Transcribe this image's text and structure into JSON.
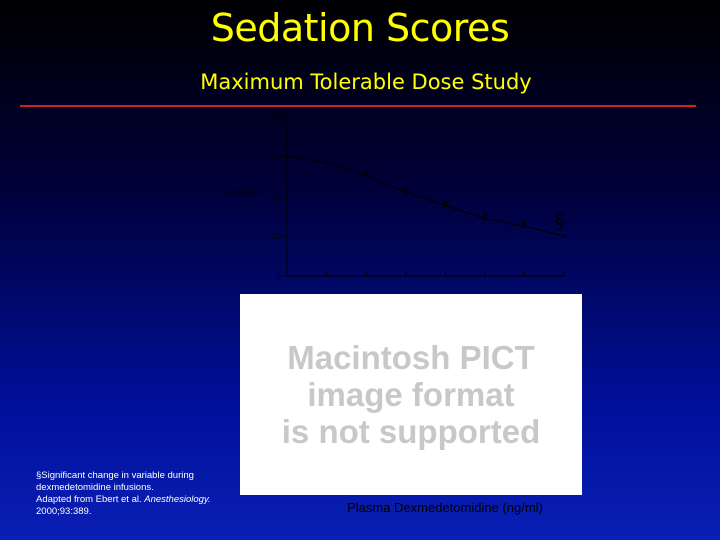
{
  "slide": {
    "title": "Sedation Scores",
    "subtitle": "Maximum Tolerable Dose Study",
    "pict_placeholder": "Macintosh PICT\nimage format\nis not supported",
    "footnote_line1": "§Significant change in variable during dexmedetomidine infusions.",
    "footnote_line2": "Adapted from Ebert et al. ",
    "footnote_journal": "Anesthesiology.",
    "footnote_citation": "2000;93:389.",
    "colors": {
      "title": "#ffff00",
      "rule": "#d42020",
      "axis": "#000000"
    }
  },
  "chart_data": {
    "type": "line",
    "ylabel": "OAA/S",
    "xlabel": "Plasma Dexmedetomidine (ng/ml)",
    "ylim": [
      5,
      25
    ],
    "yticks": [
      "5",
      "10",
      "15",
      "20",
      "25"
    ],
    "series": [
      {
        "values": [
          20,
          19.2,
          17.5,
          15.5,
          13.8,
          12.2,
          11.2,
          10
        ]
      }
    ],
    "error_bars": [
      false,
      false,
      true,
      true,
      true,
      true,
      true,
      false
    ],
    "annotations": [
      {
        "text": "§",
        "point_index": 6
      }
    ]
  }
}
